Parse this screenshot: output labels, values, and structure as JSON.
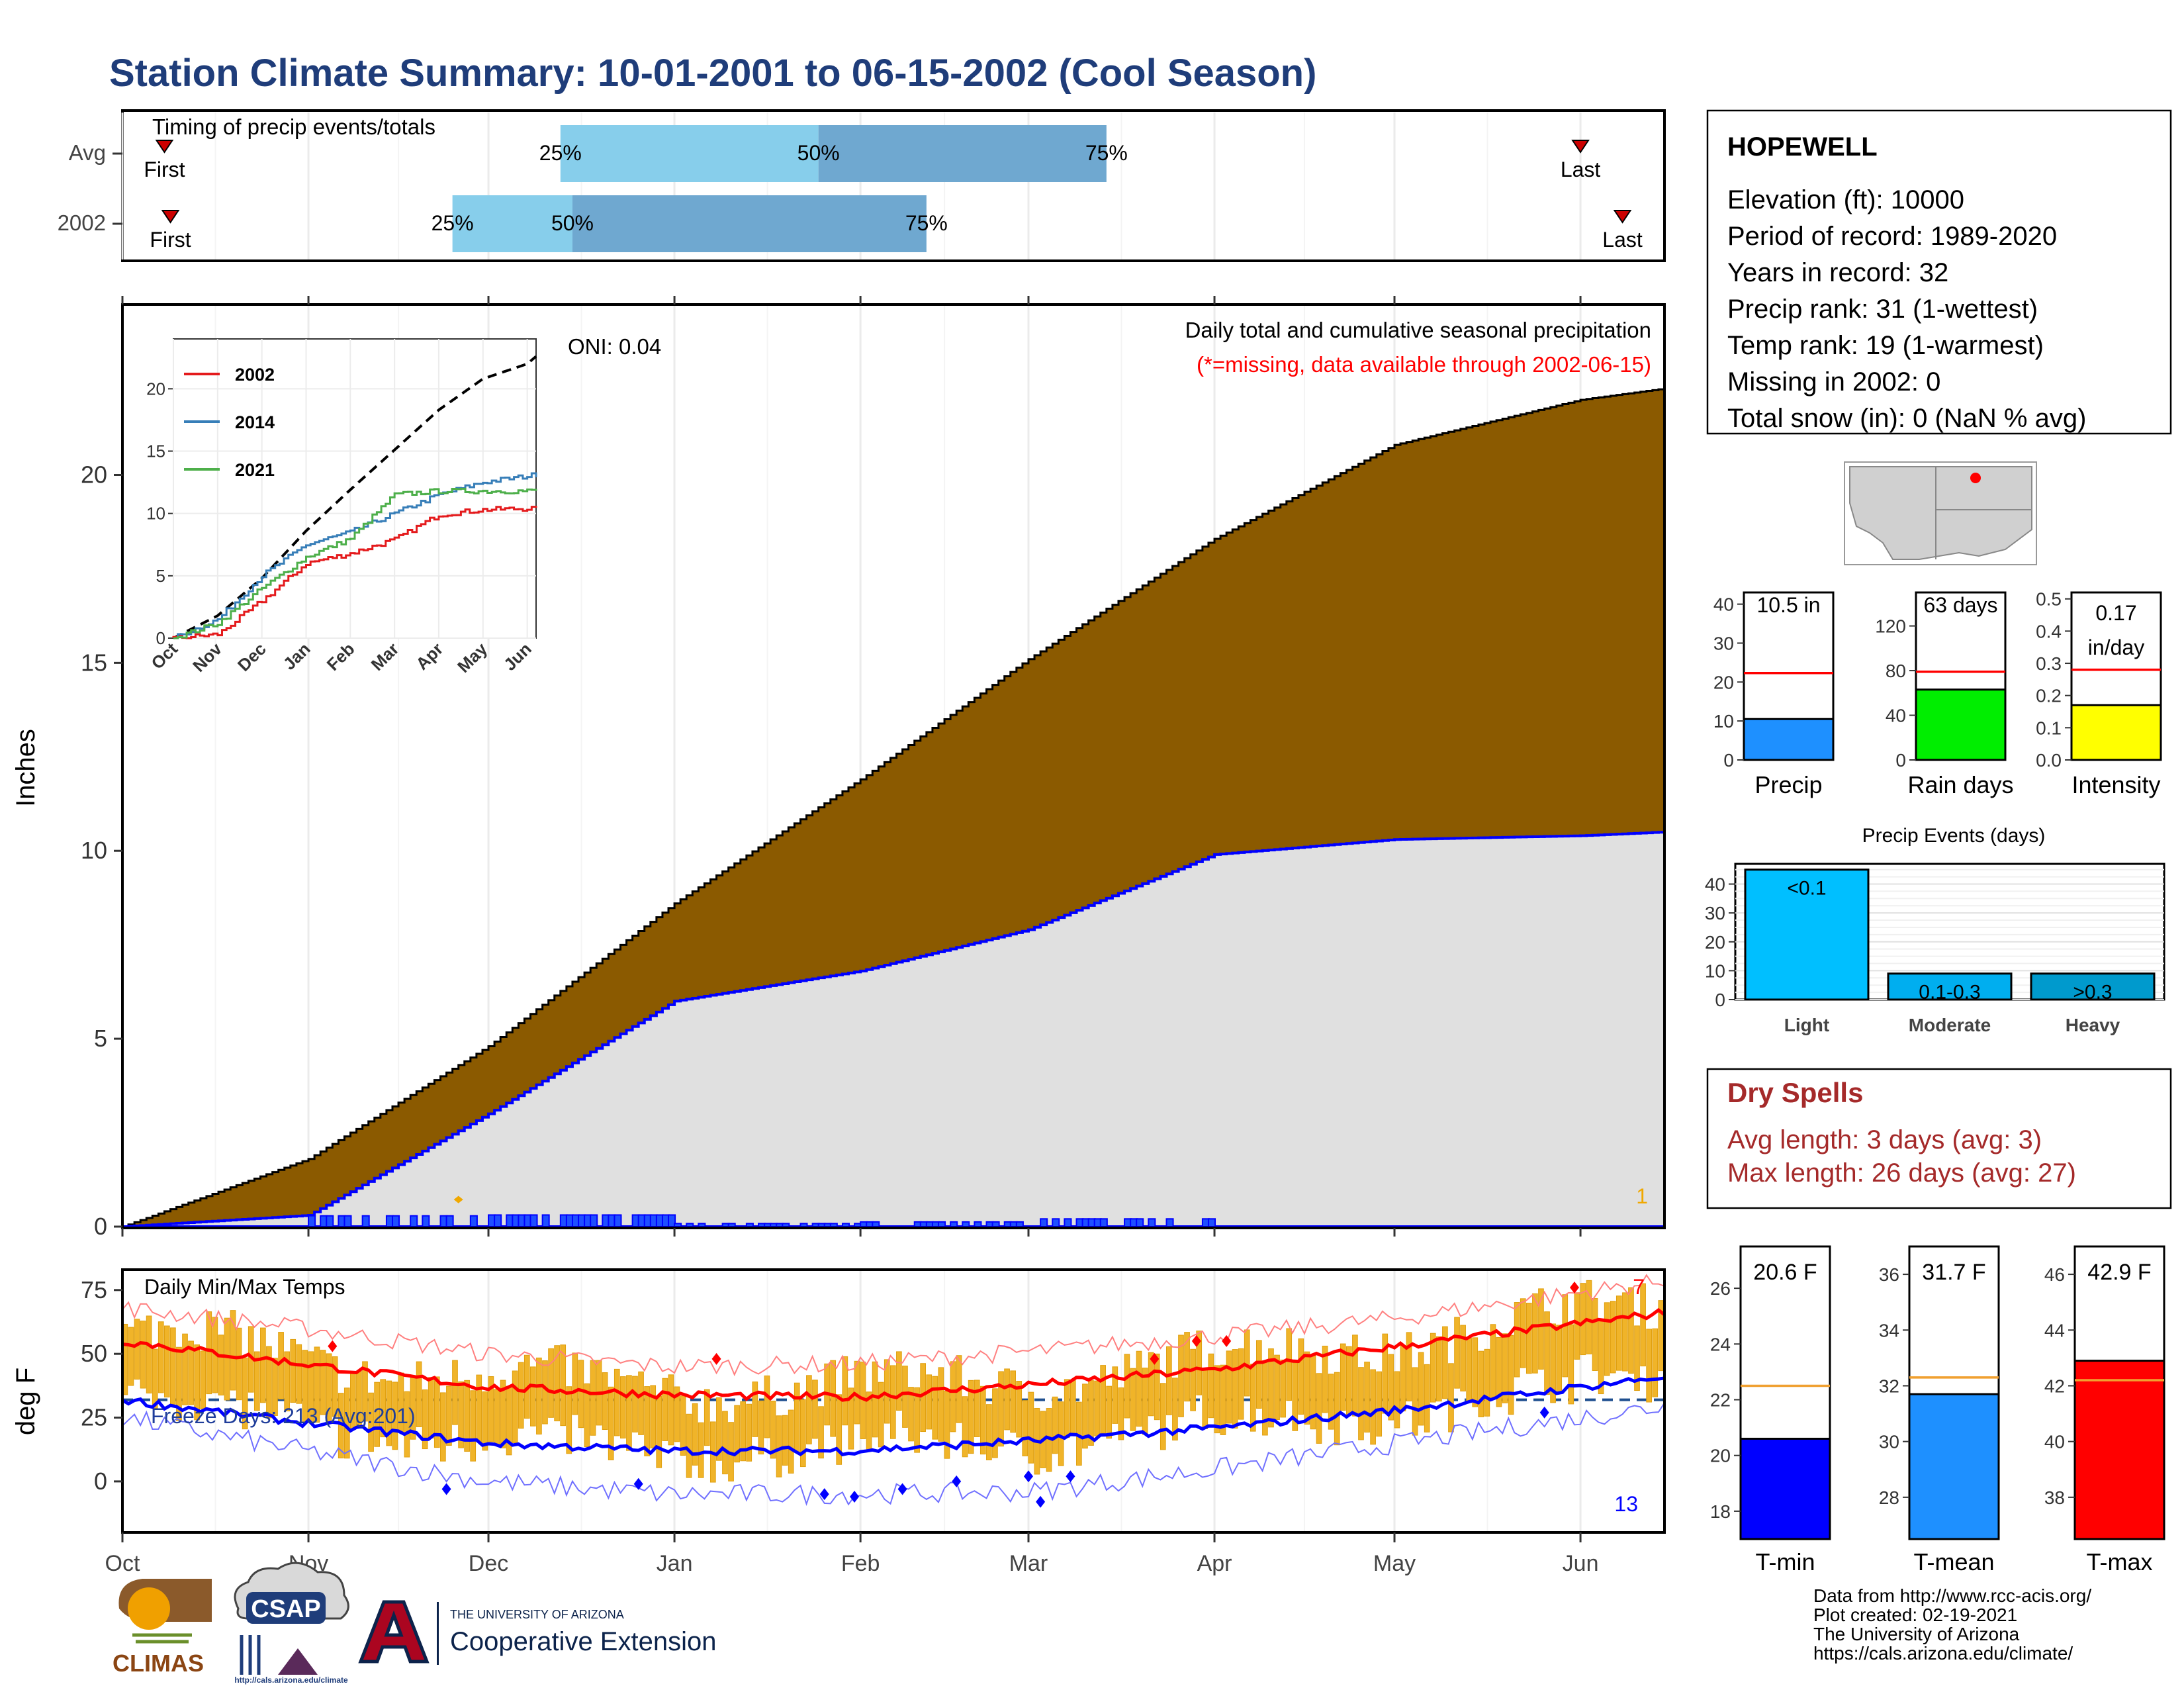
{
  "title": "Station Climate Summary: 10-01-2001 to 06-15-2002 (Cool Season)",
  "timing": {
    "label": "Timing of precip events/totals",
    "rows": [
      {
        "name": "Avg",
        "first_label": "First",
        "last_label": "Last",
        "first_date": "2001-10-08",
        "last_date": "2002-06-01",
        "p25_date": "2001-12-13",
        "p50_date": "2002-01-25",
        "p75_date": "2002-03-14",
        "p25_label": "25%",
        "p50_label": "50%",
        "p75_label": "75%"
      },
      {
        "name": "2002",
        "first_label": "First",
        "last_label": "Last",
        "first_date": "2001-10-09",
        "last_date": "2002-06-08",
        "p25_date": "2001-11-25",
        "p50_date": "2001-12-15",
        "p75_date": "2002-02-12",
        "p25_label": "25%",
        "p50_label": "50%",
        "p75_label": "75%"
      }
    ]
  },
  "precip_panel": {
    "ylabel": "Inches",
    "yticks": [
      "0",
      "5",
      "10",
      "15",
      "20"
    ],
    "note_title": "Daily total and cumulative seasonal precipitation",
    "note_missing": "(*=missing, data available through 2002-06-15)",
    "oni": "ONI: 0.04",
    "corner_value": "1",
    "avg_final": 22.3,
    "year_final": 10.5
  },
  "inset": {
    "yticks": [
      "0",
      "5",
      "10",
      "15",
      "20"
    ],
    "xticks": [
      "Oct",
      "Nov",
      "Dec",
      "Jan",
      "Feb",
      "Mar",
      "Apr",
      "May",
      "Jun"
    ],
    "legend": [
      {
        "label": "2002",
        "color": "#e41a1c"
      },
      {
        "label": "2014",
        "color": "#377eb8"
      },
      {
        "label": "2021",
        "color": "#4daf4a"
      }
    ]
  },
  "temp_panel": {
    "ylabel": "deg F",
    "label": "Daily Min/Max Temps",
    "freeze": "Freeze Days: 213 (Avg:201)",
    "yticks": [
      "0",
      "25",
      "50",
      "75"
    ],
    "high_count": "7",
    "low_count": "13"
  },
  "months": [
    "Oct",
    "Nov",
    "Dec",
    "Jan",
    "Feb",
    "Mar",
    "Apr",
    "May",
    "Jun"
  ],
  "station": {
    "name": "HOPEWELL",
    "lines": [
      "Elevation (ft): 10000",
      "Period of record: 1989-2020",
      "Years in record: 32",
      "Precip rank: 31 (1-wettest)",
      "Temp rank: 19 (1-warmest)",
      "Missing in 2002: 0",
      "Total snow (in): 0 (NaN % avg)"
    ]
  },
  "mini_bars": [
    {
      "label": "Precip",
      "value_text": "10.5 in",
      "value": 10.5,
      "avg": 22.3,
      "ymax": 43,
      "ticks": [
        "0",
        "10",
        "20",
        "30",
        "40"
      ],
      "color": "#1e90ff"
    },
    {
      "label": "Rain days",
      "value_text": "63 days",
      "value": 63,
      "avg": 79,
      "ymax": 150,
      "ticks": [
        "0",
        "40",
        "80",
        "120"
      ],
      "color": "#00ee00"
    },
    {
      "label": "Intensity",
      "value_text": "0.17 in/day",
      "value": 0.17,
      "avg": 0.28,
      "ymax": 0.52,
      "ticks": [
        "0.0",
        "0.1",
        "0.2",
        "0.3",
        "0.4",
        "0.5"
      ],
      "color": "#ffff00"
    }
  ],
  "precip_events": {
    "title": "Precip Events (days)",
    "yticks": [
      "0",
      "10",
      "20",
      "30",
      "40"
    ],
    "bars": [
      {
        "label": "Light",
        "inner": "<0.1",
        "value": 45,
        "color": "#00bfff"
      },
      {
        "label": "Moderate",
        "inner": "0.1-0.3",
        "value": 9,
        "color": "#00aeef"
      },
      {
        "label": "Heavy",
        "inner": ">0.3",
        "value": 9,
        "color": "#009acd"
      }
    ]
  },
  "dry_spells": {
    "title": "Dry Spells",
    "avg_line": "Avg length: 3 days (avg: 3)",
    "max_line": "Max length: 26 days (avg: 27)"
  },
  "temp_bars": [
    {
      "label": "T-min",
      "value_text": "20.6 F",
      "value": 20.6,
      "avg": 22.5,
      "ymin": 17,
      "ymax": 27.5,
      "ticks": [
        "18",
        "20",
        "22",
        "24",
        "26"
      ],
      "color": "#0000ff"
    },
    {
      "label": "T-mean",
      "value_text": "31.7 F",
      "value": 31.7,
      "avg": 32.3,
      "ymin": 26.5,
      "ymax": 37,
      "ticks": [
        "28",
        "30",
        "32",
        "34",
        "36"
      ],
      "color": "#1e90ff"
    },
    {
      "label": "T-max",
      "value_text": "42.9 F",
      "value": 42.9,
      "avg": 42.2,
      "ymin": 36.5,
      "ymax": 47,
      "ticks": [
        "38",
        "40",
        "42",
        "44",
        "46"
      ],
      "color": "#ff0000"
    }
  ],
  "footer": {
    "lines": [
      "Data from http://www.rcc-acis.org/",
      "Plot created: 02-19-2021",
      "The University of Arizona",
      "https://cals.arizona.edu/climate/"
    ],
    "climas": "CLIMAS",
    "csap": "CSAP",
    "csap_url": "http://cals.arizona.edu/climate",
    "ua_small": "THE UNIVERSITY OF ARIZONA",
    "ua_big": "Cooperative Extension"
  },
  "chart_data": [
    {
      "type": "bar",
      "title": "Timing of precip events/totals",
      "series": [
        {
          "name": "Avg",
          "values": {
            "first": "2001-10-08",
            "p25": "2001-12-13",
            "p50": "2002-01-25",
            "p75": "2002-03-14",
            "last": "2002-06-01"
          }
        },
        {
          "name": "2002",
          "values": {
            "first": "2001-10-09",
            "p25": "2001-11-25",
            "p50": "2001-12-15",
            "p75": "2002-02-12",
            "last": "2002-06-08"
          }
        }
      ]
    },
    {
      "type": "area",
      "title": "Daily total and cumulative seasonal precipitation",
      "ylabel": "Inches",
      "ylim": [
        0,
        24.5
      ],
      "x": [
        "2001-10-01",
        "2001-11-01",
        "2001-12-01",
        "2002-01-01",
        "2002-02-01",
        "2002-03-01",
        "2002-04-01",
        "2002-05-01",
        "2002-06-01",
        "2002-06-15"
      ],
      "series": [
        {
          "name": "avg cumulative",
          "values": [
            0,
            1.8,
            4.8,
            8.6,
            11.9,
            15.1,
            18.3,
            20.8,
            22.0,
            22.3
          ]
        },
        {
          "name": "2002 cumulative",
          "values": [
            0,
            0.3,
            3.0,
            6.0,
            6.8,
            7.9,
            9.9,
            10.3,
            10.4,
            10.5
          ]
        }
      ]
    },
    {
      "type": "line",
      "ylim": [
        0,
        22
      ],
      "x": [
        "Oct",
        "Nov",
        "Dec",
        "Jan",
        "Feb",
        "Mar",
        "Apr",
        "May",
        "Jun"
      ],
      "series": [
        {
          "name": "2002",
          "values": [
            0,
            0.3,
            3.0,
            6.0,
            6.8,
            7.9,
            9.9,
            10.3,
            10.4
          ]
        },
        {
          "name": "2014",
          "values": [
            0,
            1.5,
            5.0,
            7.5,
            8.5,
            10.0,
            11.5,
            12.5,
            13.0
          ]
        },
        {
          "name": "2021",
          "values": [
            0,
            1.2,
            4.0,
            6.5,
            8.0,
            11.5,
            11.8,
            11.8,
            11.8
          ]
        }
      ]
    },
    {
      "type": "line",
      "title": "Daily Min/Max Temps",
      "ylabel": "deg F",
      "ylim": [
        -20,
        83
      ],
      "x": [
        "Oct",
        "Nov",
        "Dec",
        "Jan",
        "Feb",
        "Mar",
        "Apr",
        "May",
        "Jun"
      ],
      "series": [
        {
          "name": "avg max",
          "values": [
            55,
            46,
            37,
            34,
            33,
            38,
            44,
            53,
            62
          ]
        },
        {
          "name": "avg min",
          "values": [
            32,
            23,
            15,
            12,
            12,
            16,
            21,
            28,
            37
          ]
        },
        {
          "name": "record max",
          "values": [
            68,
            60,
            50,
            45,
            46,
            51,
            57,
            64,
            74
          ]
        },
        {
          "name": "record min",
          "values": [
            25,
            12,
            0,
            -5,
            -5,
            -4,
            5,
            15,
            25
          ]
        }
      ]
    },
    {
      "type": "bar",
      "categories": [
        "Precip",
        "Rain days",
        "Intensity"
      ],
      "values": [
        10.5,
        63,
        0.17
      ]
    },
    {
      "type": "bar",
      "title": "Precip Events (days)",
      "categories": [
        "Light",
        "Moderate",
        "Heavy"
      ],
      "values": [
        45,
        9,
        9
      ]
    },
    {
      "type": "bar",
      "categories": [
        "T-min",
        "T-mean",
        "T-max"
      ],
      "values": [
        20.6,
        31.7,
        42.9
      ]
    }
  ]
}
